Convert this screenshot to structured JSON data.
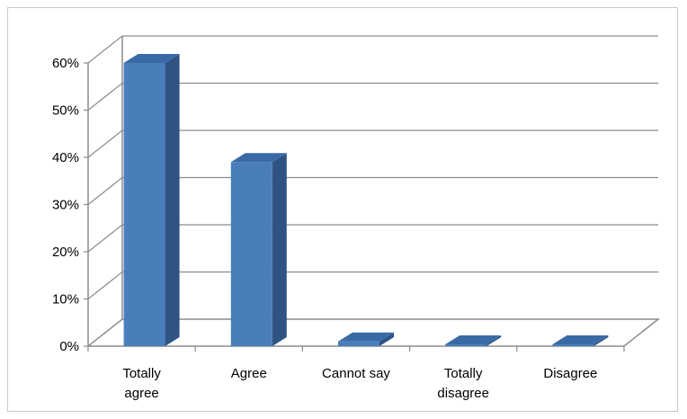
{
  "chart_data": {
    "type": "bar",
    "title": "",
    "xlabel": "",
    "ylabel": "",
    "categories": [
      [
        "Totally",
        "agree"
      ],
      [
        "Agree"
      ],
      [
        "Cannot say"
      ],
      [
        "Totally",
        "disagree"
      ],
      [
        "Disagree"
      ]
    ],
    "values": [
      60,
      39,
      1,
      0,
      0
    ],
    "ylim": [
      0,
      60
    ],
    "yticks": [
      "0%",
      "10%",
      "20%",
      "30%",
      "40%",
      "50%",
      "60%"
    ],
    "grid": true,
    "legend": "none",
    "colors": {
      "bar_front": "#4a7ebb",
      "bar_side": "#2f5484",
      "bar_top": "#3a6aa6",
      "grid": "#8c8c8c"
    }
  }
}
